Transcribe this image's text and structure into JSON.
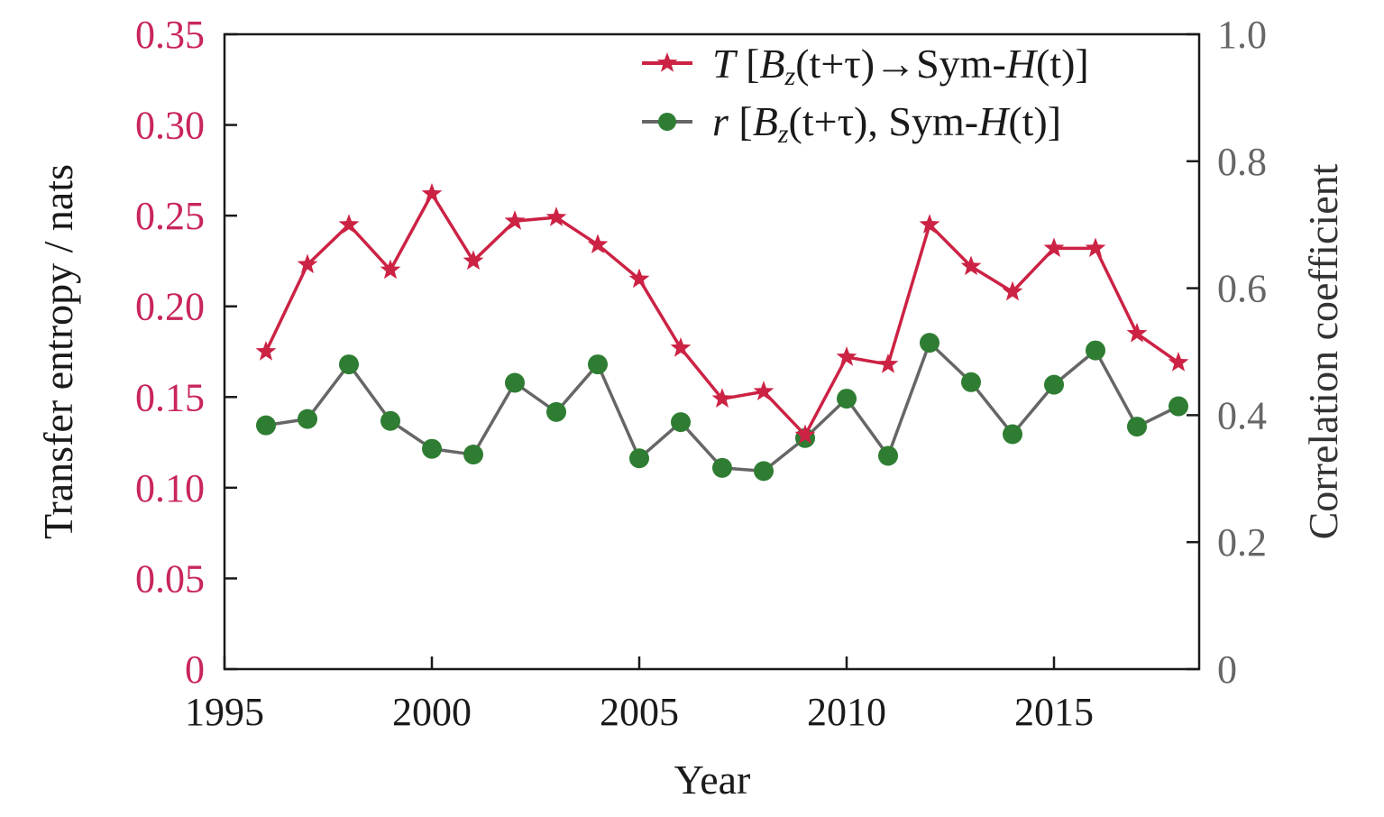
{
  "chart_data": {
    "type": "line",
    "xlabel": "Year",
    "ylabel_left": "Transfer entropy / nats",
    "ylabel_right": "Correlation coefficient",
    "xlim": [
      1995,
      2018.5
    ],
    "ylim_left": [
      0,
      0.35
    ],
    "ylim_right": [
      0,
      1.0
    ],
    "x_ticks": [
      "1995",
      "2000",
      "2005",
      "2010",
      "2015"
    ],
    "x_tick_values": [
      1995,
      2000,
      2005,
      2010,
      2015
    ],
    "y_left_ticks": [
      "0",
      "0.05",
      "0.10",
      "0.15",
      "0.20",
      "0.25",
      "0.30",
      "0.35"
    ],
    "y_left_tick_values": [
      0,
      0.05,
      0.1,
      0.15,
      0.2,
      0.25,
      0.3,
      0.35
    ],
    "y_right_ticks": [
      "0",
      "0.2",
      "0.4",
      "0.6",
      "0.8",
      "1.0"
    ],
    "y_right_tick_values": [
      0,
      0.2,
      0.4,
      0.6,
      0.8,
      1.0
    ],
    "x": [
      1996,
      1997,
      1998,
      1999,
      2000,
      2001,
      2002,
      2003,
      2004,
      2005,
      2006,
      2007,
      2008,
      2009,
      2010,
      2011,
      2012,
      2013,
      2014,
      2015,
      2016,
      2017,
      2018
    ],
    "series": [
      {
        "axis": "left",
        "marker": "star",
        "color": "#cc2244",
        "values": [
          0.175,
          0.223,
          0.245,
          0.22,
          0.262,
          0.225,
          0.247,
          0.249,
          0.234,
          0.215,
          0.177,
          0.149,
          0.153,
          0.129,
          0.172,
          0.168,
          0.245,
          0.222,
          0.208,
          0.232,
          0.232,
          0.185,
          0.169
        ]
      },
      {
        "axis": "right",
        "marker": "circle",
        "color": "#2e7d32",
        "line_color": "#666666",
        "values": [
          0.384,
          0.394,
          0.48,
          0.391,
          0.347,
          0.338,
          0.451,
          0.405,
          0.48,
          0.332,
          0.389,
          0.317,
          0.312,
          0.364,
          0.426,
          0.336,
          0.514,
          0.452,
          0.37,
          0.448,
          0.502,
          0.382,
          0.414
        ]
      }
    ],
    "legend": {
      "placement": "top-right",
      "entries": [
        {
          "symbol": "T",
          "open": "[",
          "b": "B",
          "b_sub": "z",
          "args1": "(t+τ)",
          "sep": "→Sym-",
          "h": "H",
          "args2": "(t)",
          "close": "]"
        },
        {
          "symbol": "r",
          "open": "[",
          "b": "B",
          "b_sub": "z",
          "args1": "(t+τ)",
          "sep": ", Sym-",
          "h": "H",
          "args2": "(t)",
          "close": "]"
        }
      ]
    },
    "grid": false
  }
}
